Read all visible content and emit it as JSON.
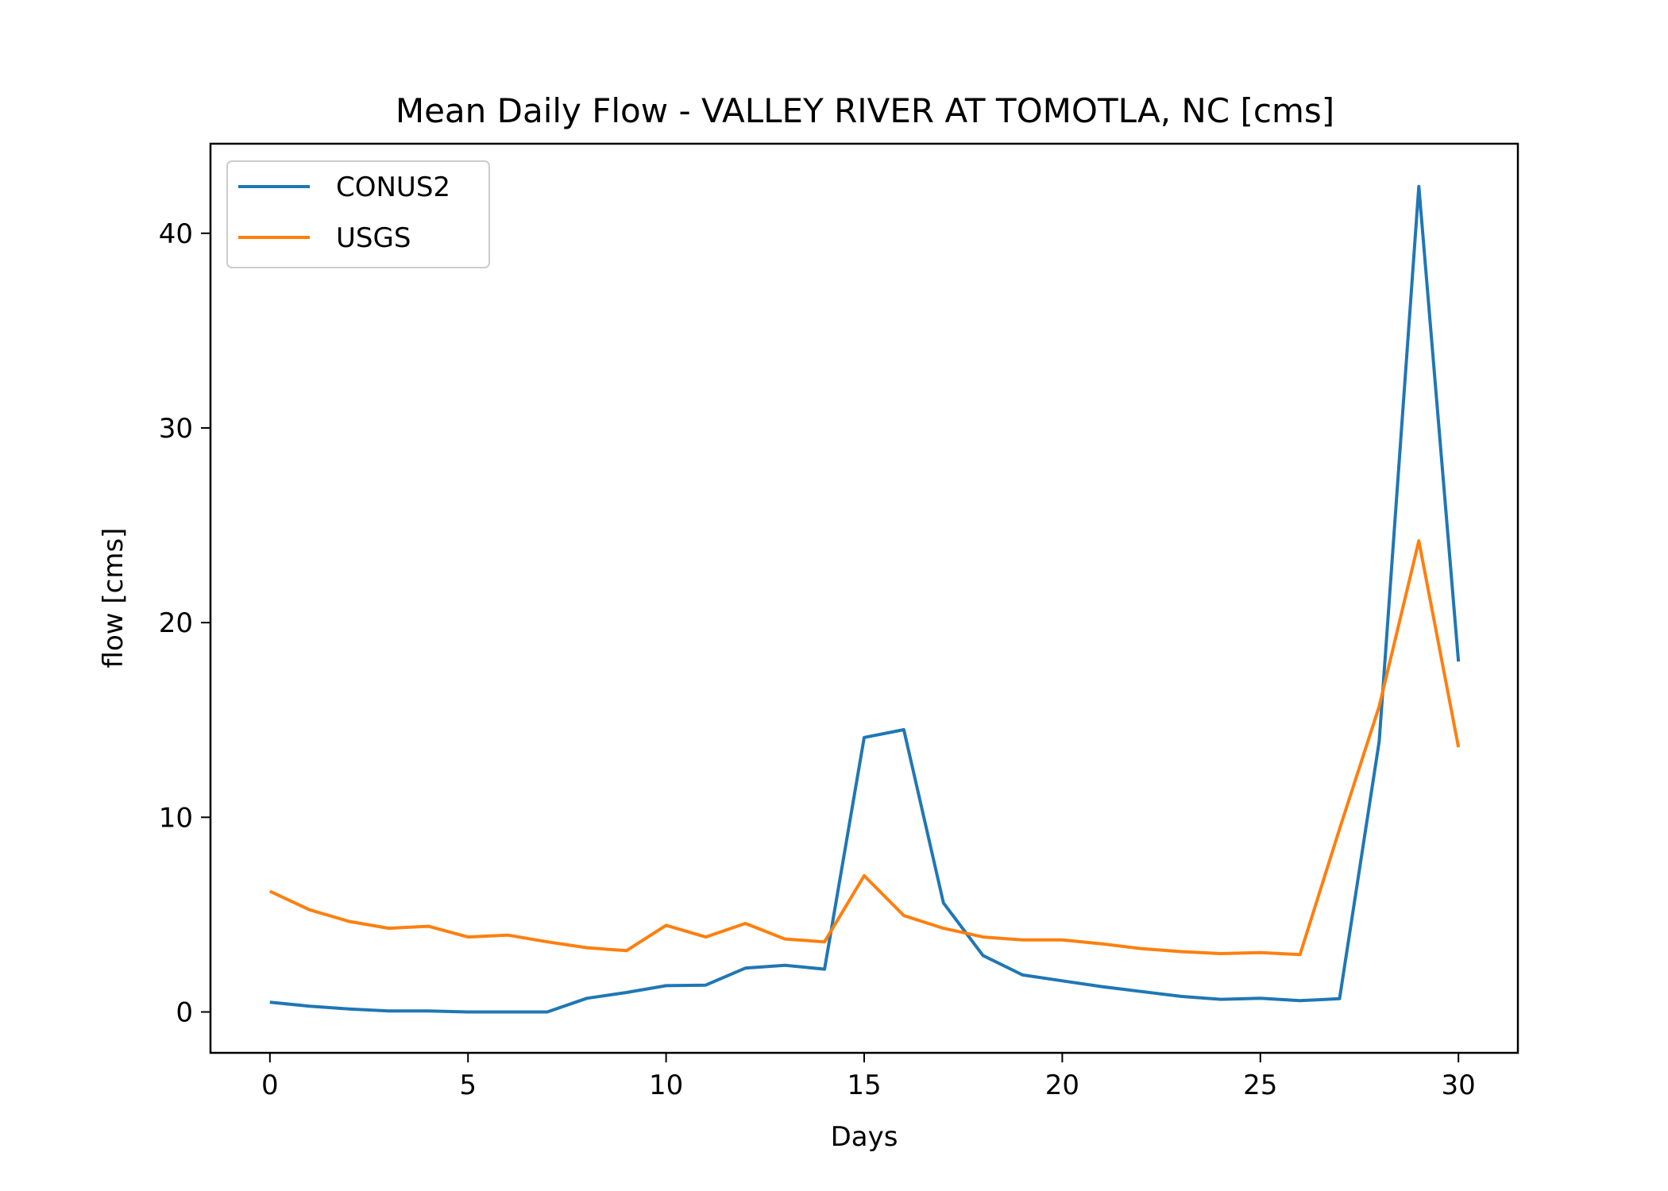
{
  "chart_data": {
    "type": "line",
    "title": "Mean Daily Flow - VALLEY RIVER AT TOMOTLA, NC [cms]",
    "xlabel": "Days",
    "ylabel": "flow [cms]",
    "xlim": [
      -1.5,
      31.5
    ],
    "ylim": [
      -2.1,
      44.6
    ],
    "xticks": [
      0,
      5,
      10,
      15,
      20,
      25,
      30
    ],
    "yticks": [
      0,
      10,
      20,
      30,
      40
    ],
    "grid": false,
    "legend": "upper-left",
    "x": [
      0,
      1,
      2,
      3,
      4,
      5,
      6,
      7,
      8,
      9,
      10,
      11,
      12,
      13,
      14,
      15,
      16,
      17,
      18,
      19,
      20,
      21,
      22,
      23,
      24,
      25,
      26,
      27,
      28,
      29,
      30
    ],
    "series": [
      {
        "name": "CONUS2",
        "color": "#1f77b4",
        "values": [
          0.5,
          0.3,
          0.15,
          0.05,
          0.05,
          0.0,
          0.0,
          0.0,
          0.7,
          1.0,
          1.35,
          1.38,
          2.25,
          2.4,
          2.2,
          14.1,
          14.5,
          5.6,
          2.9,
          1.9,
          1.6,
          1.3,
          1.05,
          0.8,
          0.65,
          0.7,
          0.58,
          0.68,
          13.9,
          42.4,
          18.0
        ]
      },
      {
        "name": "USGS",
        "color": "#ff7f0e",
        "values": [
          6.2,
          5.25,
          4.65,
          4.3,
          4.4,
          3.85,
          3.95,
          3.6,
          3.3,
          3.15,
          4.45,
          3.85,
          4.55,
          3.75,
          3.6,
          7.0,
          4.95,
          4.3,
          3.85,
          3.7,
          3.7,
          3.5,
          3.25,
          3.1,
          3.0,
          3.05,
          2.95,
          9.4,
          15.7,
          24.2,
          13.6
        ]
      }
    ]
  }
}
